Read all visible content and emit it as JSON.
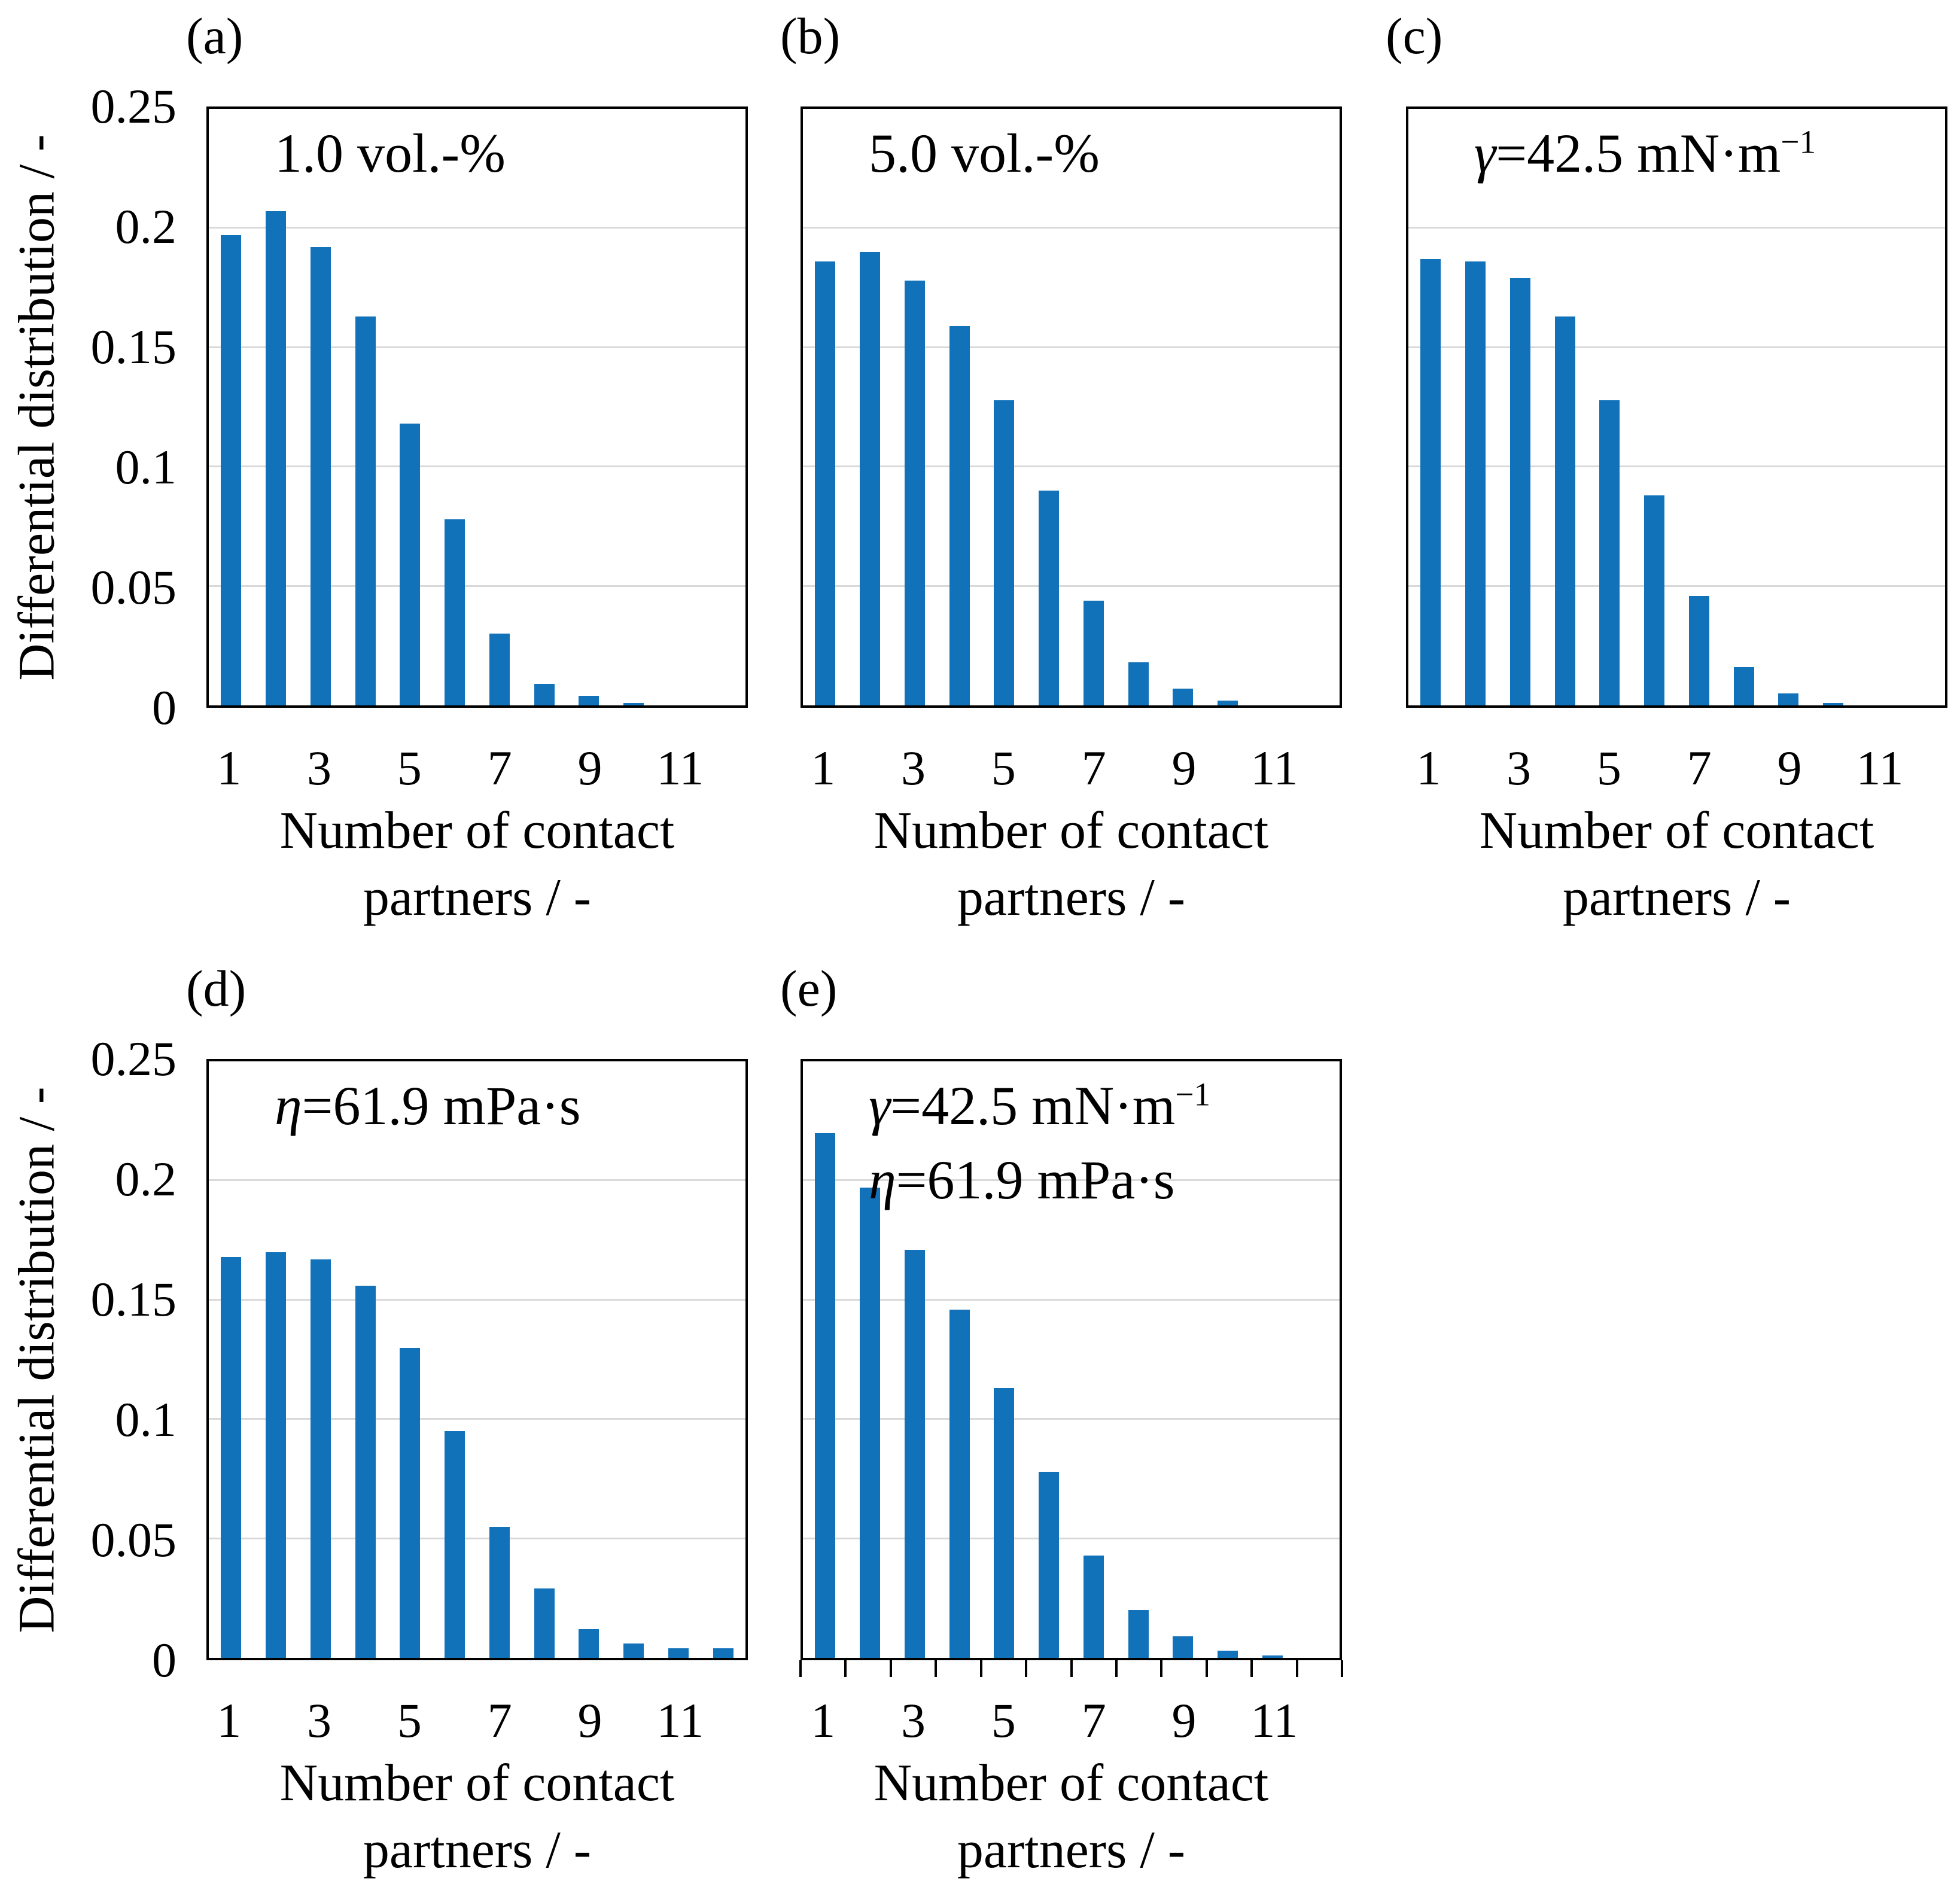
{
  "figure": {
    "y_axis_label": "Differential distribution / -",
    "x_axis_label_lines": [
      "Number of contact",
      "partners / -"
    ],
    "y_tick_labels": [
      "0.25",
      "0.2",
      "0.15",
      "0.1",
      "0.05",
      "0"
    ],
    "x_tick_labels": [
      "1",
      "3",
      "5",
      "7",
      "9",
      "11"
    ]
  },
  "colors": {
    "bar": "#1272b9",
    "gridline": "#d9d9d9",
    "border": "#000000",
    "background": "#ffffff"
  },
  "chart_data": [
    {
      "type": "bar",
      "panel_label": "(a)",
      "annotation_lines": [
        {
          "symbol": "",
          "text": "1.0 vol.-%",
          "superscript": ""
        }
      ],
      "categories": [
        1,
        2,
        3,
        4,
        5,
        6,
        7,
        8,
        9,
        10,
        11,
        12
      ],
      "values": [
        0.197,
        0.207,
        0.192,
        0.163,
        0.118,
        0.078,
        0.03,
        0.009,
        0.004,
        0.001,
        0,
        0
      ],
      "xlabel": "Number of contact partners / -",
      "ylabel": "Differential distribution / -",
      "ylim": [
        0,
        0.25
      ],
      "yticks": [
        0,
        0.05,
        0.1,
        0.15,
        0.2,
        0.25
      ],
      "xticks": [
        1,
        3,
        5,
        7,
        9,
        11
      ],
      "grid": true,
      "legend": "none",
      "show_y_axis_labels": true,
      "show_x_tick_marks": false
    },
    {
      "type": "bar",
      "panel_label": "(b)",
      "annotation_lines": [
        {
          "symbol": "",
          "text": "5.0 vol.-%",
          "superscript": ""
        }
      ],
      "categories": [
        1,
        2,
        3,
        4,
        5,
        6,
        7,
        8,
        9,
        10,
        11,
        12
      ],
      "values": [
        0.186,
        0.19,
        0.178,
        0.159,
        0.128,
        0.09,
        0.044,
        0.018,
        0.007,
        0.002,
        0,
        0
      ],
      "xlabel": "Number of contact partners / -",
      "ylabel": "Differential distribution / -",
      "ylim": [
        0,
        0.25
      ],
      "yticks": [
        0,
        0.05,
        0.1,
        0.15,
        0.2,
        0.25
      ],
      "xticks": [
        1,
        3,
        5,
        7,
        9,
        11
      ],
      "grid": true,
      "legend": "none",
      "show_y_axis_labels": false,
      "show_x_tick_marks": false
    },
    {
      "type": "bar",
      "panel_label": "(c)",
      "annotation_lines": [
        {
          "symbol": "γ",
          "text": "=42.5 mN·m",
          "superscript": "−1"
        }
      ],
      "categories": [
        1,
        2,
        3,
        4,
        5,
        6,
        7,
        8,
        9,
        10,
        11,
        12
      ],
      "values": [
        0.187,
        0.186,
        0.179,
        0.163,
        0.128,
        0.088,
        0.046,
        0.016,
        0.005,
        0.001,
        0,
        0
      ],
      "xlabel": "Number of contact partners / -",
      "ylabel": "Differential distribution / -",
      "ylim": [
        0,
        0.25
      ],
      "yticks": [
        0,
        0.05,
        0.1,
        0.15,
        0.2,
        0.25
      ],
      "xticks": [
        1,
        3,
        5,
        7,
        9,
        11
      ],
      "grid": true,
      "legend": "none",
      "show_y_axis_labels": false,
      "show_x_tick_marks": false
    },
    {
      "type": "bar",
      "panel_label": "(d)",
      "annotation_lines": [
        {
          "symbol": "η",
          "text": "=61.9 mPa·s",
          "superscript": ""
        }
      ],
      "categories": [
        1,
        2,
        3,
        4,
        5,
        6,
        7,
        8,
        9,
        10,
        11,
        12
      ],
      "values": [
        0.168,
        0.17,
        0.167,
        0.156,
        0.13,
        0.095,
        0.055,
        0.029,
        0.012,
        0.006,
        0.004,
        0.004
      ],
      "xlabel": "Number of contact partners / -",
      "ylabel": "Differential distribution / -",
      "ylim": [
        0,
        0.25
      ],
      "yticks": [
        0,
        0.05,
        0.1,
        0.15,
        0.2,
        0.25
      ],
      "xticks": [
        1,
        3,
        5,
        7,
        9,
        11
      ],
      "grid": true,
      "legend": "none",
      "show_y_axis_labels": true,
      "show_x_tick_marks": false
    },
    {
      "type": "bar",
      "panel_label": "(e)",
      "annotation_lines": [
        {
          "symbol": "γ",
          "text": "=42.5 mN·m",
          "superscript": "−1"
        },
        {
          "symbol": "η",
          "text": "=61.9 mPa·s",
          "superscript": ""
        }
      ],
      "categories": [
        1,
        2,
        3,
        4,
        5,
        6,
        7,
        8,
        9,
        10,
        11,
        12
      ],
      "values": [
        0.22,
        0.197,
        0.171,
        0.146,
        0.113,
        0.078,
        0.043,
        0.02,
        0.009,
        0.003,
        0.001,
        0
      ],
      "xlabel": "Number of contact partners / -",
      "ylabel": "Differential distribution / -",
      "ylim": [
        0,
        0.25
      ],
      "yticks": [
        0,
        0.05,
        0.1,
        0.15,
        0.2,
        0.25
      ],
      "xticks": [
        1,
        3,
        5,
        7,
        9,
        11
      ],
      "grid": true,
      "legend": "none",
      "show_y_axis_labels": false,
      "show_x_tick_marks": true
    }
  ]
}
